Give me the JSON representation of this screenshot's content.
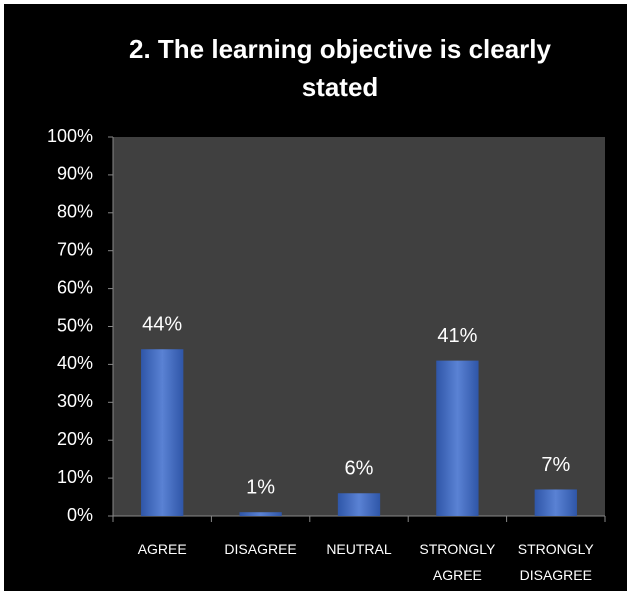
{
  "chart_data": {
    "type": "bar",
    "title": "2. The learning objective is clearly stated",
    "categories": [
      "AGREE",
      "DISAGREE",
      "NEUTRAL",
      "STRONGLY AGREE",
      "STRONGLY DISAGREE"
    ],
    "values": [
      44,
      1,
      6,
      41,
      7
    ],
    "value_labels": [
      "44%",
      "1%",
      "6%",
      "41%",
      "7%"
    ],
    "color": "#4a72c8",
    "ylim": [
      0,
      100
    ],
    "yticks": [
      {
        "value": 0,
        "label": "0%"
      },
      {
        "value": 10,
        "label": "10%"
      },
      {
        "value": 20,
        "label": "20%"
      },
      {
        "value": 30,
        "label": "30%"
      },
      {
        "value": 40,
        "label": "40%"
      },
      {
        "value": 50,
        "label": "50%"
      },
      {
        "value": 60,
        "label": "60%"
      },
      {
        "value": 70,
        "label": "70%"
      },
      {
        "value": 80,
        "label": "80%"
      },
      {
        "value": 90,
        "label": "90%"
      },
      {
        "value": 100,
        "label": "100%"
      }
    ],
    "grid": false
  }
}
